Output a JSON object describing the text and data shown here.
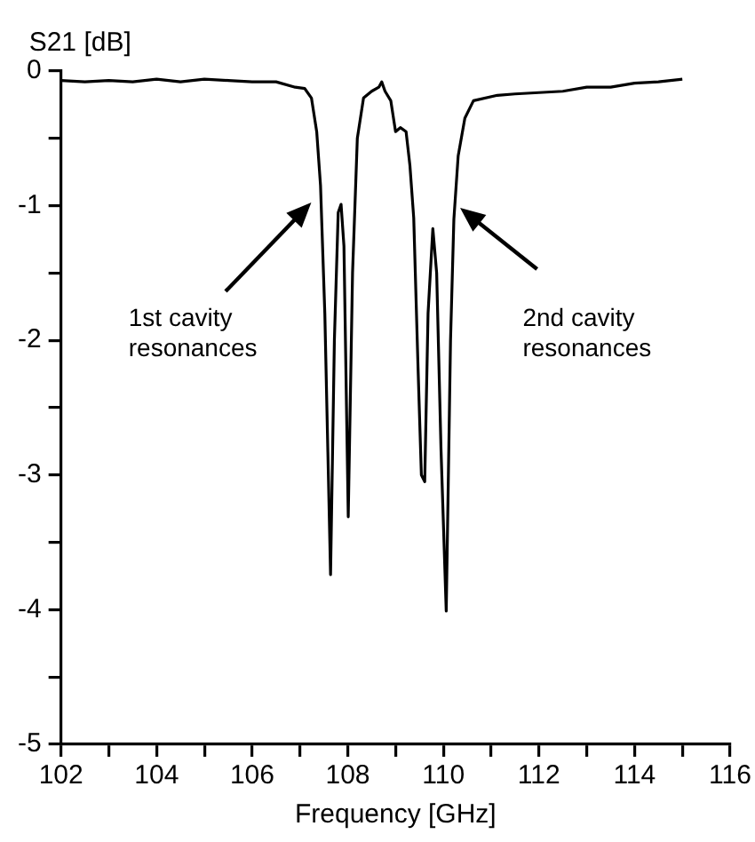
{
  "chart_data": {
    "type": "line",
    "xlabel": "Frequency [GHz]",
    "ylabel": "S21 [dB]",
    "series": [
      {
        "color": "#000000",
        "x": [
          102,
          102.5,
          103,
          103.5,
          104,
          104.5,
          105,
          105.5,
          106,
          106.5,
          106.9,
          107.1,
          107.24,
          107.35,
          107.43,
          107.52,
          107.64,
          107.72,
          107.8,
          107.86,
          107.92,
          108.01,
          108.1,
          108.2,
          108.33,
          108.5,
          108.65,
          108.71,
          108.78,
          108.9,
          109.0,
          109.1,
          109.22,
          109.3,
          109.38,
          109.47,
          109.54,
          109.61,
          109.68,
          109.78,
          109.86,
          109.95,
          110.06,
          110.15,
          110.22,
          110.31,
          110.45,
          110.63,
          111.13,
          111.5,
          112,
          112.5,
          113,
          113.5,
          114,
          114.5,
          115
        ],
        "values": [
          -0.07,
          -0.08,
          -0.07,
          -0.08,
          -0.06,
          -0.08,
          -0.06,
          -0.07,
          -0.08,
          -0.08,
          -0.12,
          -0.13,
          -0.2,
          -0.45,
          -0.85,
          -1.8,
          -3.74,
          -2.0,
          -1.05,
          -0.99,
          -1.3,
          -3.31,
          -1.5,
          -0.5,
          -0.2,
          -0.15,
          -0.12,
          -0.08,
          -0.15,
          -0.22,
          -0.45,
          -0.42,
          -0.45,
          -0.7,
          -1.09,
          -2.2,
          -3.0,
          -3.05,
          -1.8,
          -1.17,
          -1.5,
          -2.8,
          -4.01,
          -2.0,
          -1.1,
          -0.63,
          -0.35,
          -0.22,
          -0.18,
          -0.17,
          -0.16,
          -0.15,
          -0.12,
          -0.12,
          -0.09,
          -0.08,
          -0.06
        ]
      }
    ],
    "xlim": [
      102,
      116
    ],
    "xticks": [
      102,
      {
        "value": 103,
        "label": null
      },
      104,
      {
        "value": 105,
        "label": null
      },
      106,
      {
        "value": 107,
        "label": null
      },
      108,
      {
        "value": 109,
        "label": null
      },
      110,
      {
        "value": 111,
        "label": null
      },
      112,
      {
        "value": 113,
        "label": null
      },
      114,
      {
        "value": 115,
        "label": null
      },
      116
    ],
    "ylim": [
      -5,
      0
    ],
    "yticks": [
      -5,
      {
        "value": -4.5,
        "label": null
      },
      -4,
      {
        "value": -3.5,
        "label": null
      },
      -3,
      {
        "value": -2.5,
        "label": null
      },
      -2,
      {
        "value": -1.5,
        "label": null
      },
      -1,
      {
        "value": -0.5,
        "label": null
      },
      0
    ],
    "grid": false,
    "legend": false,
    "marker": "none",
    "line_style": "solid",
    "annotations": [
      "1st cavity\nresonances",
      "2nd cavity\nresonances"
    ]
  }
}
